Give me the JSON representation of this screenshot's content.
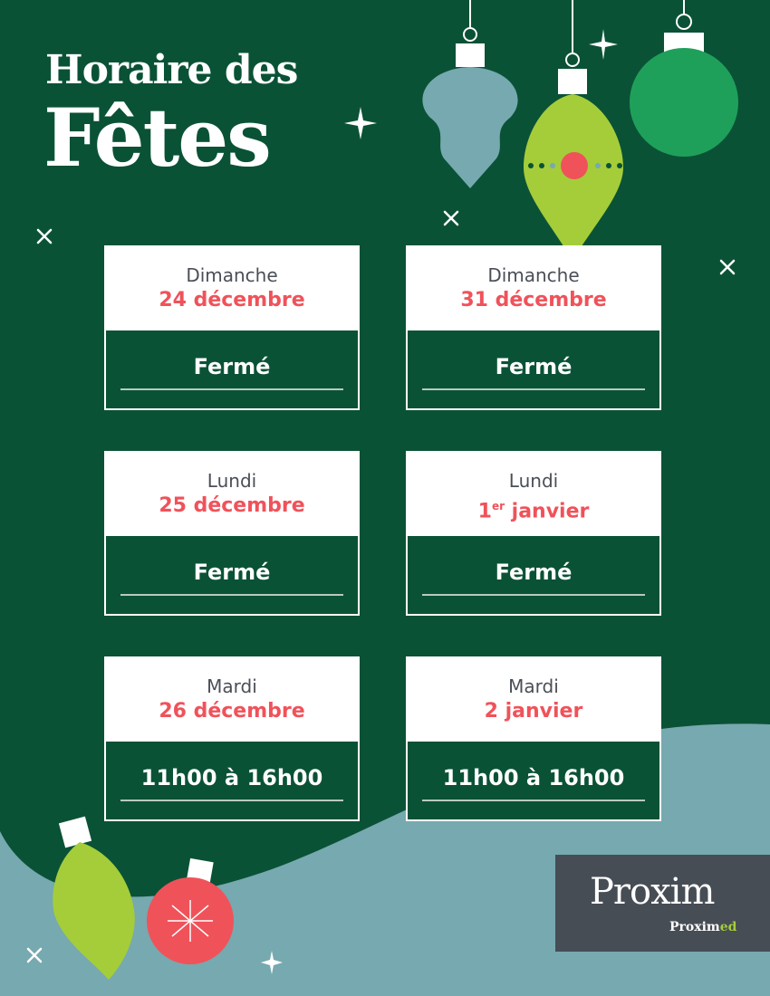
{
  "title": {
    "line1": "Horaire des",
    "line2": "Fêtes"
  },
  "colors": {
    "background": "#0a5236",
    "wave": "#76a9b0",
    "accent": "#f0525a",
    "lime": "#a4cd39",
    "logo_bg": "#474d55"
  },
  "cards": [
    {
      "day": "Dimanche",
      "date": "24 décembre",
      "hours": "Fermé"
    },
    {
      "day": "Dimanche",
      "date": "31 décembre",
      "hours": "Fermé"
    },
    {
      "day": "Lundi",
      "date": "25 décembre",
      "hours": "Fermé"
    },
    {
      "day": "Lundi",
      "date_num": "1",
      "date_sup": "er",
      "date": " janvier",
      "hours": "Fermé"
    },
    {
      "day": "Mardi",
      "date": "26 décembre",
      "hours": "11h00 à 16h00"
    },
    {
      "day": "Mardi",
      "date": "2 janvier",
      "hours": "11h00 à 16h00"
    }
  ],
  "logo": {
    "brand": "Proxim",
    "sub_brand_a": "Proxim",
    "sub_brand_b": "ed"
  },
  "decorations": [
    "ornament-icon",
    "sparkle-icon",
    "snowflake-icon"
  ]
}
